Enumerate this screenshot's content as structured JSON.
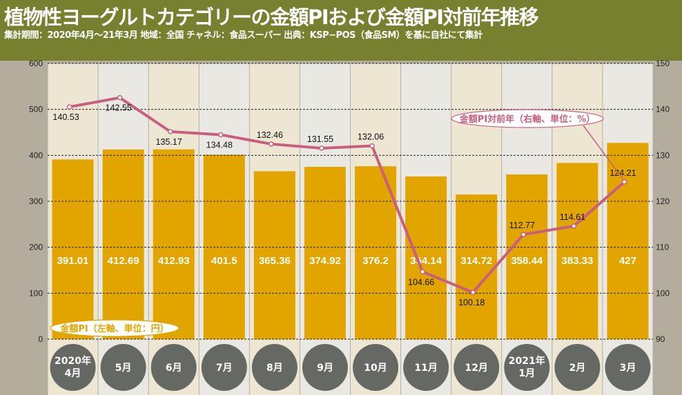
{
  "header": {
    "title": "植物性ヨーグルトカテゴリーの金額PIおよび金額PI対前年推移",
    "subtitle": "集計期間：2020年4月～21年3月 地域：全国 チャネル：食品スーパー 出典：KSP−POS（食品SM）を基に自社にて集計"
  },
  "chart_data": {
    "type": "bar+line",
    "title": "植物性ヨーグルトカテゴリーの金額PIおよび金額PI対前年推移",
    "categories": [
      [
        "2020年",
        "4月"
      ],
      [
        "5月"
      ],
      [
        "6月"
      ],
      [
        "7月"
      ],
      [
        "8月"
      ],
      [
        "9月"
      ],
      [
        "10月"
      ],
      [
        "11月"
      ],
      [
        "12月"
      ],
      [
        "2021年",
        "1月"
      ],
      [
        "2月"
      ],
      [
        "3月"
      ]
    ],
    "series": [
      {
        "name": "金額PI（左軸、単位：円）",
        "type": "bar",
        "axis": "left",
        "color": "#e2a500",
        "values": [
          391.01,
          412.69,
          412.93,
          401.5,
          365.36,
          374.92,
          376.2,
          354.14,
          314.72,
          358.44,
          383.33,
          427
        ],
        "labels": [
          "391.01",
          "412.69",
          "412.93",
          "401.5",
          "365.36",
          "374.92",
          "376.2",
          "354.14",
          "314.72",
          "358.44",
          "383.33",
          "427"
        ]
      },
      {
        "name": "金額PI対前年（右軸、単位：%）",
        "type": "line",
        "axis": "right",
        "color": "#c95f7f",
        "values": [
          140.53,
          142.55,
          135.17,
          134.48,
          132.46,
          131.55,
          132.06,
          104.66,
          100.18,
          112.77,
          114.61,
          124.21
        ],
        "labels": [
          "140.53",
          "142.55",
          "135.17",
          "134.48",
          "132.46",
          "131.55",
          "132.06",
          "104.66",
          "100.18",
          "112.77",
          "114.61",
          "124.21"
        ],
        "label_position": [
          "below",
          "below",
          "below",
          "below",
          "above",
          "above",
          "above",
          "below",
          "below",
          "above",
          "above",
          "above"
        ]
      }
    ],
    "left_axis": {
      "range": [
        0,
        600
      ],
      "ticks": [
        "0",
        "100",
        "200",
        "300",
        "400",
        "500",
        "600"
      ]
    },
    "right_axis": {
      "range": [
        90,
        150
      ],
      "ticks": [
        "90",
        "100",
        "110",
        "120",
        "130",
        "140",
        "150"
      ]
    },
    "grid": "dashed horizontal",
    "legend_placement": "inline callouts"
  }
}
